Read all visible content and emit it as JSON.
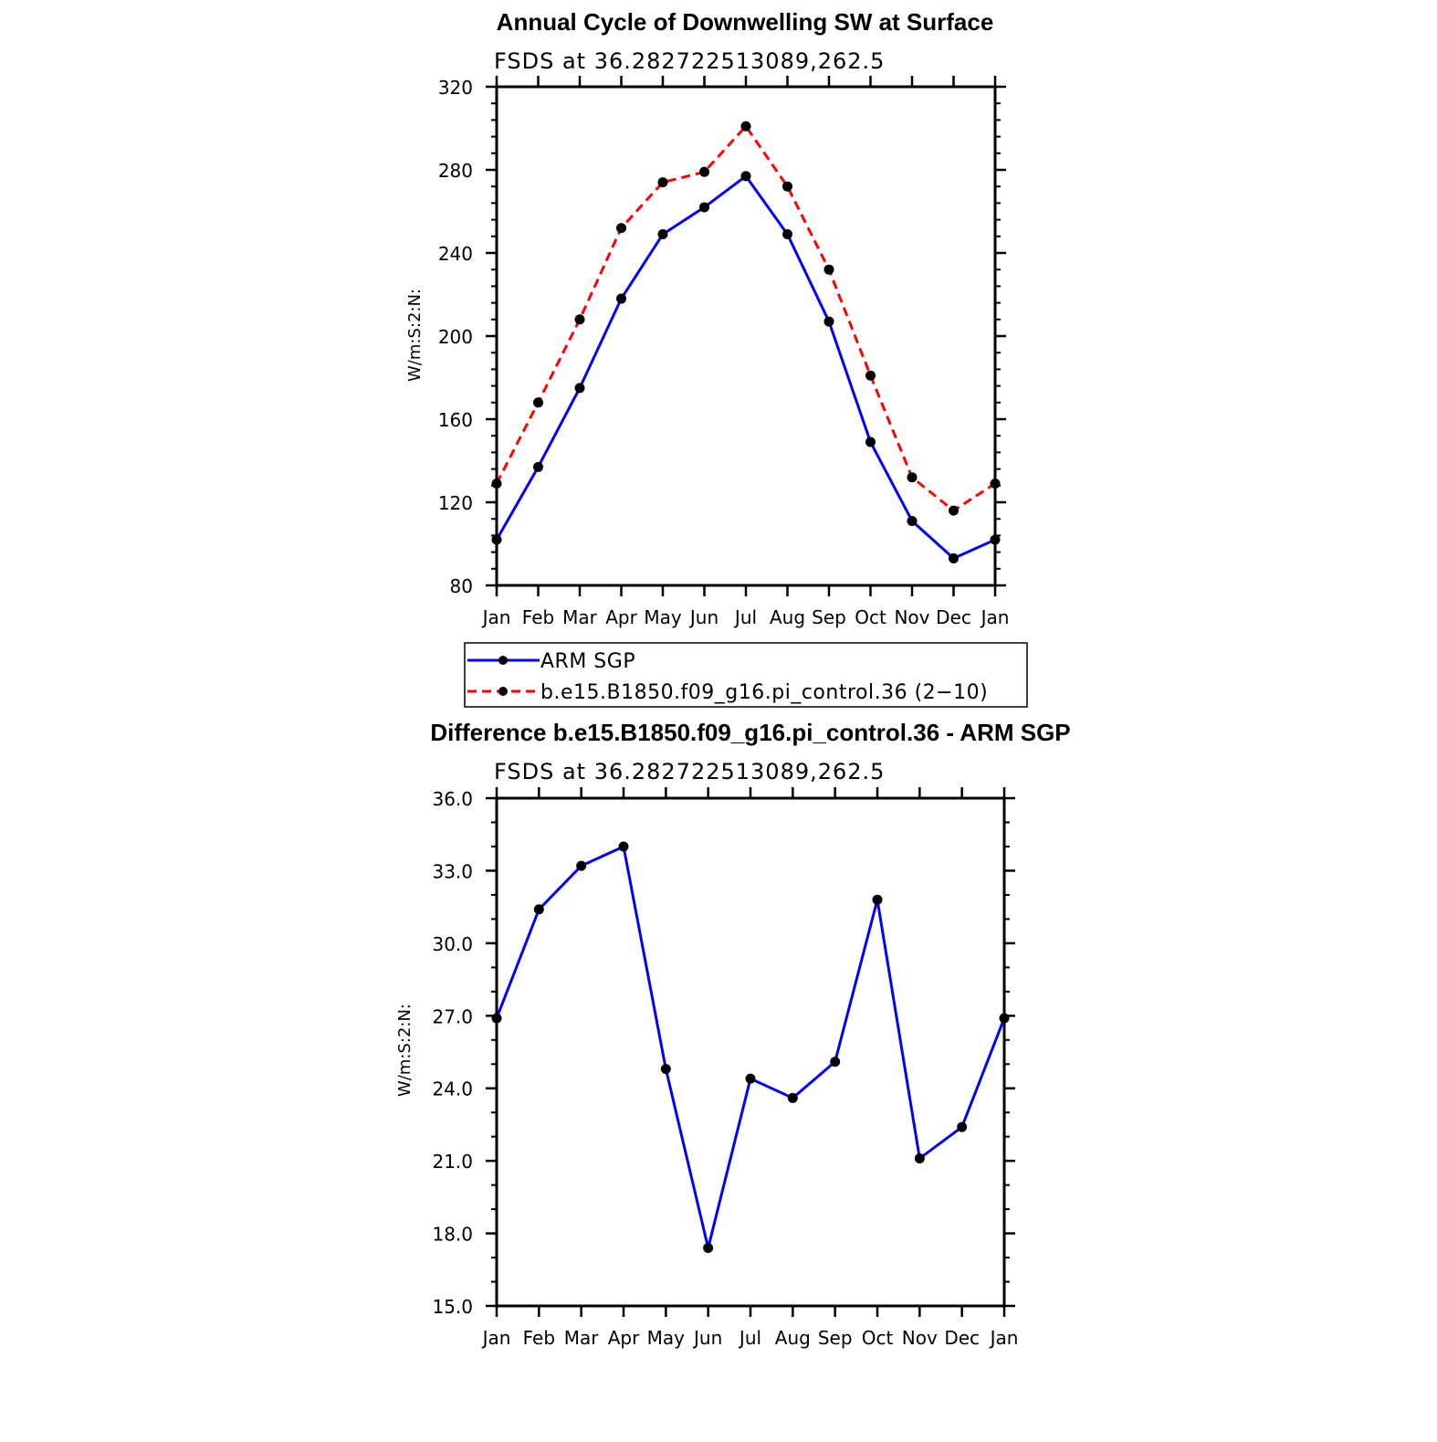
{
  "chart_data": [
    {
      "type": "line",
      "title": "Annual Cycle of Downwelling SW at Surface",
      "subtitle": "FSDS at 36.282722513089,262.5",
      "ylabel": "W/m:S:2:N:",
      "xlabel": "",
      "categories": [
        "Jan",
        "Feb",
        "Mar",
        "Apr",
        "May",
        "Jun",
        "Jul",
        "Aug",
        "Sep",
        "Oct",
        "Nov",
        "Dec",
        "Jan"
      ],
      "ylim": [
        80,
        320
      ],
      "yticks": [
        "80",
        "120",
        "160",
        "200",
        "240",
        "280",
        "320"
      ],
      "series": [
        {
          "name": "ARM SGP",
          "color": "#0000ff",
          "dash": "solid",
          "values": [
            102,
            137,
            175,
            218,
            249,
            262,
            277,
            249,
            207,
            149,
            111,
            93,
            102
          ]
        },
        {
          "name": "b.e15.B1850.f09_g16.pi_control.36 (2−10)",
          "color": "#ff0000",
          "dash": "dashed",
          "values": [
            129,
            168,
            208,
            252,
            274,
            279,
            301,
            272,
            232,
            181,
            132,
            116,
            129
          ]
        }
      ],
      "legend": "below"
    },
    {
      "type": "line",
      "title": "Difference b.e15.B1850.f09_g16.pi_control.36 - ARM SGP",
      "subtitle": "FSDS at 36.282722513089,262.5",
      "ylabel": "W/m:S:2:N:",
      "xlabel": "",
      "categories": [
        "Jan",
        "Feb",
        "Mar",
        "Apr",
        "May",
        "Jun",
        "Jul",
        "Aug",
        "Sep",
        "Oct",
        "Nov",
        "Dec",
        "Jan"
      ],
      "ylim": [
        15,
        36
      ],
      "yticks": [
        "15.0",
        "18.0",
        "21.0",
        "24.0",
        "27.0",
        "30.0",
        "33.0",
        "36.0"
      ],
      "series": [
        {
          "name": "",
          "color": "#0000ff",
          "dash": "solid",
          "values": [
            26.9,
            31.4,
            33.2,
            34.0,
            24.8,
            17.4,
            24.4,
            23.6,
            25.1,
            31.8,
            21.1,
            22.4,
            26.9
          ]
        }
      ]
    }
  ]
}
